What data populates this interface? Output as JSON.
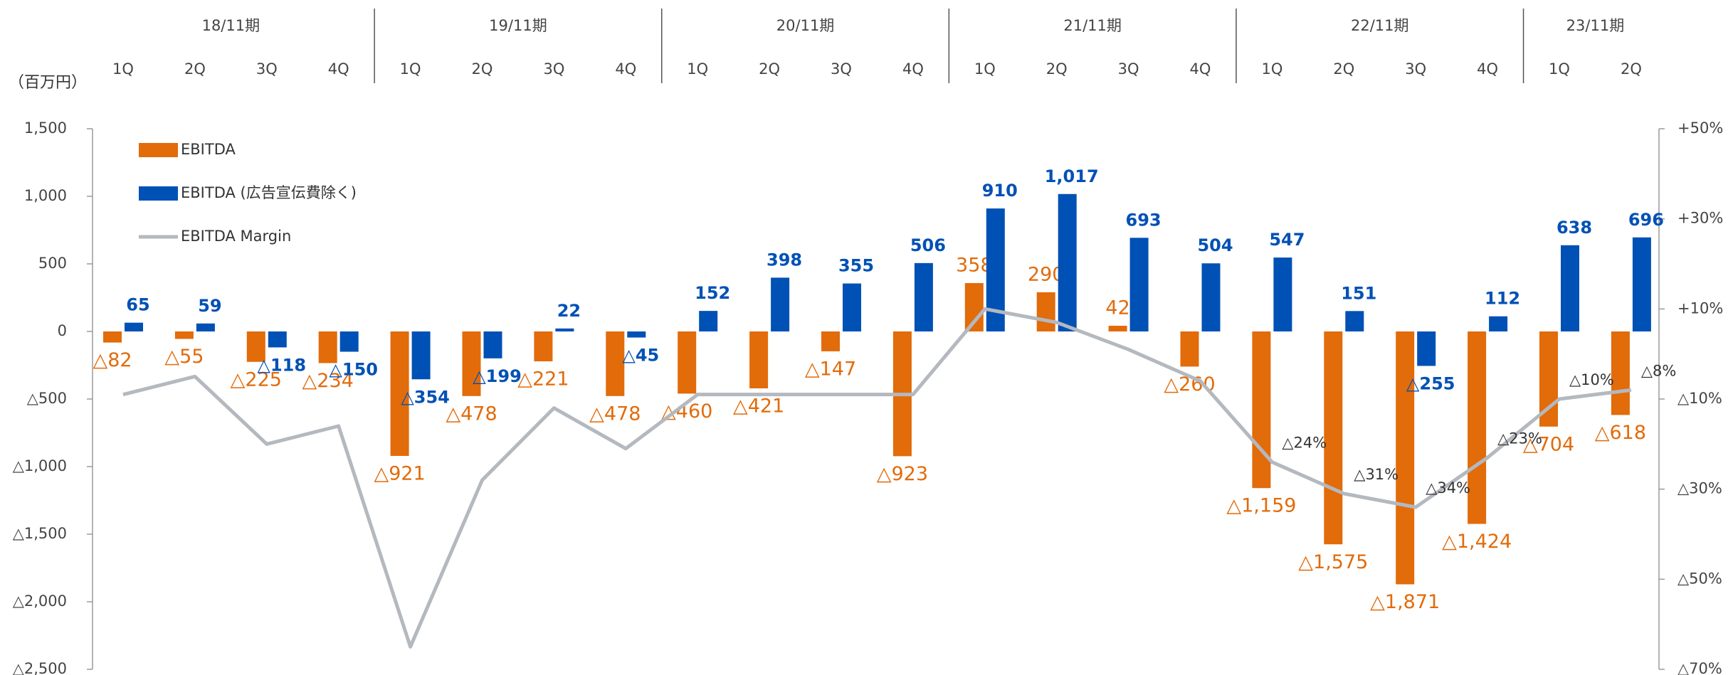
{
  "chart_data": {
    "type": "bar-line",
    "unit_label": "（百万円）",
    "periods": [
      {
        "label": "18/11期",
        "quarters": [
          "1Q",
          "2Q",
          "3Q",
          "4Q"
        ]
      },
      {
        "label": "19/11期",
        "quarters": [
          "1Q",
          "2Q",
          "3Q",
          "4Q"
        ]
      },
      {
        "label": "20/11期",
        "quarters": [
          "1Q",
          "2Q",
          "3Q",
          "4Q"
        ]
      },
      {
        "label": "21/11期",
        "quarters": [
          "1Q",
          "2Q",
          "3Q",
          "4Q"
        ]
      },
      {
        "label": "22/11期",
        "quarters": [
          "1Q",
          "2Q",
          "3Q",
          "4Q"
        ]
      },
      {
        "label": "23/11期",
        "quarters": [
          "1Q",
          "2Q"
        ]
      }
    ],
    "series": [
      {
        "name": "EBITDA",
        "type": "bar",
        "color": "#e26b0a",
        "values": [
          -82,
          -55,
          -225,
          -234,
          -921,
          -478,
          -221,
          -478,
          -460,
          -421,
          -147,
          -923,
          358,
          290,
          42,
          -260,
          -1159,
          -1575,
          -1871,
          -1424,
          -704,
          -618
        ],
        "value_labels": [
          "△82",
          "△55",
          "△225",
          "△234",
          "△921",
          "△478",
          "△221",
          "△478",
          "△460",
          "△421",
          "△147",
          "△923",
          "358",
          "290",
          "42",
          "△260",
          "△1,159",
          "△1,575",
          "△1,871",
          "△1,424",
          "△704",
          "△618"
        ]
      },
      {
        "name": "EBITDA (広告宣伝費除く)",
        "type": "bar",
        "color": "#0051b5",
        "values": [
          65,
          59,
          -118,
          -150,
          -354,
          -199,
          22,
          -45,
          152,
          398,
          355,
          506,
          910,
          1017,
          693,
          504,
          547,
          151,
          -255,
          112,
          638,
          696
        ],
        "value_labels": [
          "65",
          "59",
          "△118",
          "△150",
          "△354",
          "△199",
          "22",
          "△45",
          "152",
          "398",
          "355",
          "506",
          "910",
          "1,017",
          "693",
          "504",
          "547",
          "151",
          "△255",
          "112",
          "638",
          "696"
        ]
      },
      {
        "name": "EBITDA Margin",
        "type": "line",
        "axis": "y2",
        "color": "#b4b8bf",
        "values": [
          -9,
          -5,
          -20,
          -16,
          -65,
          -28,
          -12,
          -21,
          -9,
          -9,
          -9,
          -9,
          10,
          7,
          1,
          -6,
          -24,
          -31,
          -34,
          -23,
          -10,
          -8
        ],
        "value_labels": [
          null,
          null,
          null,
          null,
          null,
          null,
          null,
          null,
          null,
          null,
          null,
          null,
          null,
          null,
          null,
          null,
          "△24%",
          "△31%",
          "△34%",
          "△23%",
          "△10%",
          "△8%"
        ]
      }
    ],
    "ylim": [
      -2500,
      1500
    ],
    "yticks": [
      {
        "value": 1500,
        "label": "1,500"
      },
      {
        "value": 1000,
        "label": "1,000"
      },
      500,
      0,
      {
        "value": -500,
        "label": "△500"
      },
      {
        "value": -1000,
        "label": "△1,000"
      },
      {
        "value": -1500,
        "label": "△1,500"
      },
      {
        "value": -2000,
        "label": "△2,000"
      },
      {
        "value": -2500,
        "label": "△2,500"
      }
    ],
    "y2lim": [
      -70,
      50
    ],
    "y2ticks": [
      {
        "value": 50,
        "label": "+50%"
      },
      {
        "value": 30,
        "label": "+30%"
      },
      {
        "value": 10,
        "label": "+10%"
      },
      {
        "value": -10,
        "label": "△10%"
      },
      {
        "value": -30,
        "label": "△30%"
      },
      {
        "value": -50,
        "label": "△50%"
      },
      {
        "value": -70,
        "label": "△70%"
      }
    ],
    "legend": "upper left"
  }
}
